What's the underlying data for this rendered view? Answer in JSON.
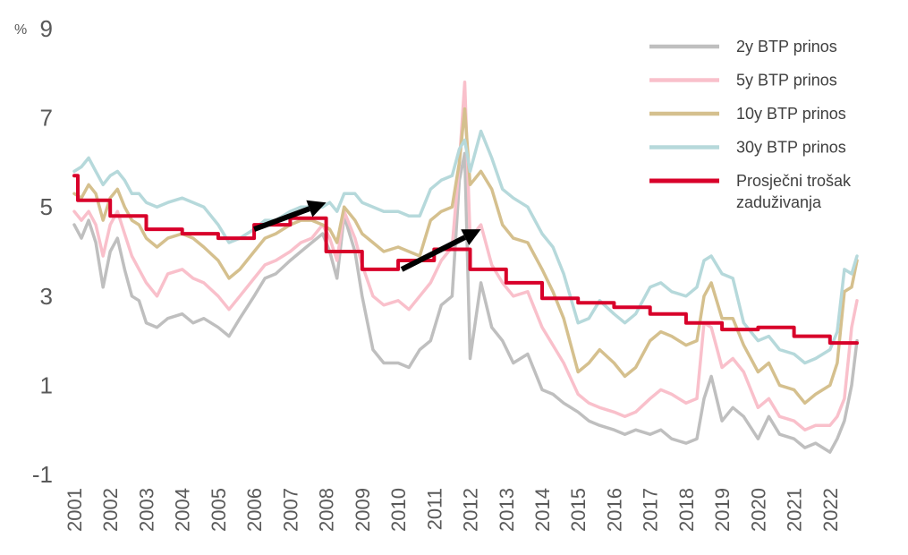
{
  "chart_data": {
    "type": "line",
    "unit": "%",
    "ylim": [
      -1,
      9
    ],
    "y_ticks": [
      "-1",
      "1",
      "3",
      "5",
      "7",
      "9"
    ],
    "xlim": [
      2001,
      2022.8
    ],
    "x_ticks": [
      "2001",
      "2002",
      "2003",
      "2004",
      "2005",
      "2006",
      "2007",
      "2008",
      "2009",
      "2010",
      "2011",
      "2012",
      "2013",
      "2014",
      "2015",
      "2016",
      "2017",
      "2018",
      "2019",
      "2020",
      "2021",
      "2022"
    ],
    "grid": false,
    "legend_position": "top-right",
    "legend": [
      {
        "label": "2y BTP prinos",
        "color": "#BFBFBF"
      },
      {
        "label": "5y BTP prinos",
        "color": "#F9C0CB"
      },
      {
        "label": "10y BTP prinos",
        "color": "#D5C08E"
      },
      {
        "label": "30y BTP prinos",
        "color": "#B6D9DB"
      },
      {
        "label": "Prosječni trošak zaduživanja",
        "color": "#D8002A"
      }
    ],
    "series": [
      {
        "name": "2y BTP prinos",
        "color": "#BFBFBF",
        "x": [
          2001,
          2001.2,
          2001.4,
          2001.6,
          2001.8,
          2002,
          2002.2,
          2002.4,
          2002.6,
          2002.8,
          2003,
          2003.3,
          2003.6,
          2004,
          2004.3,
          2004.6,
          2005,
          2005.3,
          2005.6,
          2006,
          2006.3,
          2006.6,
          2007,
          2007.3,
          2007.6,
          2007.9,
          2008.1,
          2008.3,
          2008.5,
          2008.8,
          2009,
          2009.3,
          2009.6,
          2010,
          2010.3,
          2010.6,
          2010.9,
          2011.2,
          2011.5,
          2011.7,
          2011.85,
          2012,
          2012.3,
          2012.6,
          2012.9,
          2013.2,
          2013.6,
          2014,
          2014.3,
          2014.6,
          2015,
          2015.3,
          2015.6,
          2016,
          2016.3,
          2016.6,
          2017,
          2017.3,
          2017.6,
          2018,
          2018.3,
          2018.5,
          2018.7,
          2019,
          2019.3,
          2019.6,
          2020,
          2020.3,
          2020.6,
          2021,
          2021.3,
          2021.6,
          2022,
          2022.2,
          2022.4,
          2022.6,
          2022.75
        ],
        "values": [
          4.6,
          4.3,
          4.7,
          4.2,
          3.2,
          4.0,
          4.3,
          3.6,
          3.0,
          2.9,
          2.4,
          2.3,
          2.5,
          2.6,
          2.4,
          2.5,
          2.3,
          2.1,
          2.5,
          3.0,
          3.4,
          3.5,
          3.8,
          4.0,
          4.2,
          4.4,
          4.0,
          3.4,
          4.8,
          4.0,
          3.0,
          1.8,
          1.5,
          1.5,
          1.4,
          1.8,
          2.0,
          2.8,
          3.0,
          5.6,
          6.2,
          1.6,
          3.3,
          2.3,
          2.0,
          1.5,
          1.7,
          0.9,
          0.8,
          0.6,
          0.4,
          0.2,
          0.1,
          0.0,
          -0.1,
          0.0,
          -0.1,
          0.0,
          -0.2,
          -0.3,
          -0.2,
          0.7,
          1.2,
          0.2,
          0.5,
          0.3,
          -0.2,
          0.3,
          -0.1,
          -0.2,
          -0.4,
          -0.3,
          -0.5,
          -0.2,
          0.2,
          1.0,
          2.0
        ]
      },
      {
        "name": "5y BTP prinos",
        "color": "#F9C0CB",
        "x": [
          2001,
          2001.2,
          2001.4,
          2001.6,
          2001.8,
          2002,
          2002.2,
          2002.4,
          2002.6,
          2002.8,
          2003,
          2003.3,
          2003.6,
          2004,
          2004.3,
          2004.6,
          2005,
          2005.3,
          2005.6,
          2006,
          2006.3,
          2006.6,
          2007,
          2007.3,
          2007.6,
          2007.9,
          2008.1,
          2008.3,
          2008.5,
          2008.8,
          2009,
          2009.3,
          2009.6,
          2010,
          2010.3,
          2010.6,
          2010.9,
          2011.2,
          2011.5,
          2011.7,
          2011.85,
          2012,
          2012.3,
          2012.6,
          2012.9,
          2013.2,
          2013.6,
          2014,
          2014.3,
          2014.6,
          2015,
          2015.3,
          2015.6,
          2016,
          2016.3,
          2016.6,
          2017,
          2017.3,
          2017.6,
          2018,
          2018.3,
          2018.5,
          2018.7,
          2019,
          2019.3,
          2019.6,
          2020,
          2020.3,
          2020.6,
          2021,
          2021.3,
          2021.6,
          2022,
          2022.2,
          2022.4,
          2022.6,
          2022.75
        ],
        "values": [
          4.9,
          4.7,
          4.9,
          4.6,
          3.9,
          4.6,
          4.9,
          4.4,
          3.9,
          3.6,
          3.3,
          3.0,
          3.5,
          3.6,
          3.4,
          3.3,
          3.0,
          2.7,
          3.0,
          3.4,
          3.7,
          3.8,
          4.0,
          4.2,
          4.3,
          4.6,
          4.3,
          3.8,
          4.9,
          4.3,
          3.7,
          3.0,
          2.8,
          2.9,
          2.7,
          3.0,
          3.3,
          3.8,
          4.1,
          6.0,
          7.8,
          4.3,
          4.6,
          3.7,
          3.3,
          3.0,
          3.1,
          2.3,
          1.9,
          1.5,
          0.8,
          0.6,
          0.5,
          0.4,
          0.3,
          0.4,
          0.7,
          0.9,
          0.8,
          0.6,
          0.7,
          2.4,
          2.3,
          1.4,
          1.6,
          1.3,
          0.5,
          0.7,
          0.3,
          0.2,
          0.0,
          0.1,
          0.1,
          0.3,
          0.7,
          2.3,
          2.9
        ]
      },
      {
        "name": "10y BTP prinos",
        "color": "#D5C08E",
        "x": [
          2001,
          2001.2,
          2001.4,
          2001.6,
          2001.8,
          2002,
          2002.2,
          2002.4,
          2002.6,
          2002.8,
          2003,
          2003.3,
          2003.6,
          2004,
          2004.3,
          2004.6,
          2005,
          2005.3,
          2005.6,
          2006,
          2006.3,
          2006.6,
          2007,
          2007.3,
          2007.6,
          2007.9,
          2008.1,
          2008.3,
          2008.5,
          2008.8,
          2009,
          2009.3,
          2009.6,
          2010,
          2010.3,
          2010.6,
          2010.9,
          2011.2,
          2011.5,
          2011.7,
          2011.85,
          2012,
          2012.3,
          2012.6,
          2012.9,
          2013.2,
          2013.6,
          2014,
          2014.3,
          2014.6,
          2015,
          2015.3,
          2015.6,
          2016,
          2016.3,
          2016.6,
          2017,
          2017.3,
          2017.6,
          2018,
          2018.3,
          2018.5,
          2018.7,
          2019,
          2019.3,
          2019.6,
          2020,
          2020.3,
          2020.6,
          2021,
          2021.3,
          2021.6,
          2022,
          2022.2,
          2022.4,
          2022.6,
          2022.75
        ],
        "values": [
          5.3,
          5.2,
          5.5,
          5.3,
          4.7,
          5.2,
          5.4,
          5.0,
          4.7,
          4.6,
          4.3,
          4.1,
          4.3,
          4.4,
          4.3,
          4.1,
          3.8,
          3.4,
          3.6,
          4.0,
          4.3,
          4.4,
          4.6,
          4.7,
          4.7,
          4.6,
          4.5,
          4.2,
          5.0,
          4.7,
          4.4,
          4.2,
          4.0,
          4.1,
          4.0,
          3.9,
          4.7,
          4.9,
          5.0,
          6.0,
          7.2,
          5.5,
          5.8,
          5.4,
          4.6,
          4.3,
          4.2,
          3.6,
          3.1,
          2.5,
          1.3,
          1.5,
          1.8,
          1.5,
          1.2,
          1.4,
          2.0,
          2.2,
          2.1,
          1.9,
          2.0,
          3.0,
          3.3,
          2.5,
          2.5,
          1.9,
          1.3,
          1.5,
          1.0,
          0.9,
          0.6,
          0.8,
          1.0,
          1.5,
          3.1,
          3.2,
          3.8
        ]
      },
      {
        "name": "30y BTP prinos",
        "color": "#B6D9DB",
        "x": [
          2001,
          2001.2,
          2001.4,
          2001.6,
          2001.8,
          2002,
          2002.2,
          2002.4,
          2002.6,
          2002.8,
          2003,
          2003.3,
          2003.6,
          2004,
          2004.3,
          2004.6,
          2005,
          2005.3,
          2005.6,
          2006,
          2006.3,
          2006.6,
          2007,
          2007.3,
          2007.6,
          2007.9,
          2008.1,
          2008.3,
          2008.5,
          2008.8,
          2009,
          2009.3,
          2009.6,
          2010,
          2010.3,
          2010.6,
          2010.9,
          2011.2,
          2011.5,
          2011.7,
          2011.85,
          2012,
          2012.3,
          2012.6,
          2012.9,
          2013.2,
          2013.6,
          2014,
          2014.3,
          2014.6,
          2015,
          2015.3,
          2015.6,
          2016,
          2016.3,
          2016.6,
          2017,
          2017.3,
          2017.6,
          2018,
          2018.3,
          2018.5,
          2018.7,
          2019,
          2019.3,
          2019.6,
          2020,
          2020.3,
          2020.6,
          2021,
          2021.3,
          2021.6,
          2022,
          2022.2,
          2022.4,
          2022.6,
          2022.75
        ],
        "values": [
          5.8,
          5.9,
          6.1,
          5.8,
          5.5,
          5.7,
          5.8,
          5.6,
          5.3,
          5.3,
          5.1,
          5.0,
          5.1,
          5.2,
          5.1,
          5.0,
          4.6,
          4.2,
          4.3,
          4.5,
          4.7,
          4.7,
          4.9,
          5.0,
          5.0,
          5.0,
          5.1,
          4.9,
          5.3,
          5.3,
          5.1,
          5.0,
          4.9,
          4.9,
          4.8,
          4.8,
          5.4,
          5.6,
          5.7,
          6.3,
          6.5,
          5.8,
          6.7,
          6.1,
          5.4,
          5.2,
          5.0,
          4.4,
          4.1,
          3.5,
          2.4,
          2.5,
          2.9,
          2.6,
          2.4,
          2.6,
          3.2,
          3.3,
          3.1,
          3.0,
          3.2,
          3.8,
          3.9,
          3.5,
          3.4,
          2.4,
          2.0,
          2.1,
          1.8,
          1.7,
          1.5,
          1.6,
          1.8,
          2.2,
          3.6,
          3.5,
          3.9
        ]
      },
      {
        "name": "Prosječni trošak zaduživanja",
        "color": "#D8002A",
        "step": true,
        "x": [
          2001,
          2001.1,
          2002,
          2003,
          2004,
          2005,
          2006,
          2007,
          2008,
          2009,
          2010,
          2011,
          2012,
          2013,
          2014,
          2015,
          2016,
          2017,
          2018,
          2019,
          2020,
          2021,
          2022,
          2022.75
        ],
        "values": [
          5.7,
          5.15,
          4.8,
          4.5,
          4.4,
          4.3,
          4.6,
          4.75,
          4.0,
          3.6,
          3.8,
          4.05,
          3.6,
          3.3,
          2.95,
          2.85,
          2.75,
          2.6,
          2.4,
          2.25,
          2.3,
          2.1,
          1.95,
          1.95
        ]
      }
    ],
    "annotations": [
      {
        "type": "arrow",
        "from": [
          2006,
          4.5
        ],
        "to": [
          2008,
          5.1
        ]
      },
      {
        "type": "arrow",
        "from": [
          2010.1,
          3.6
        ],
        "to": [
          2012.3,
          4.5
        ]
      }
    ]
  }
}
